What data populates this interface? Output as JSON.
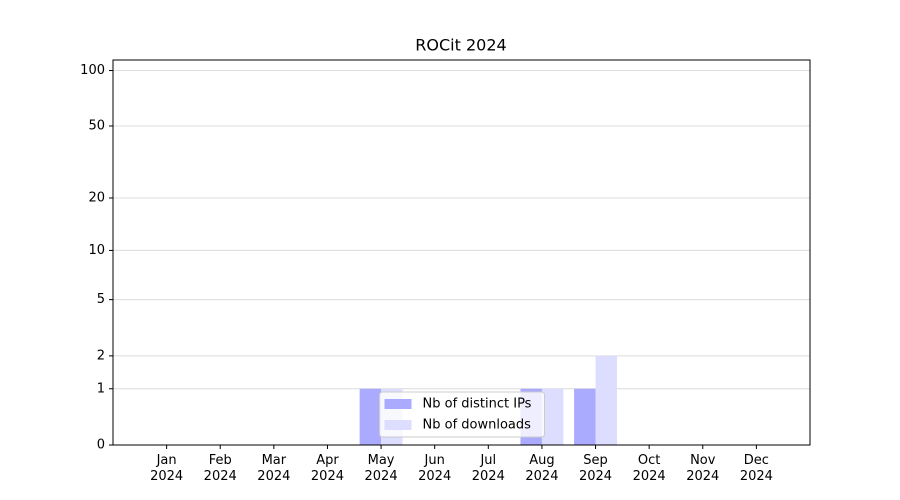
{
  "chart_data": {
    "type": "bar",
    "title": "ROCit 2024",
    "categories": [
      "Jan\n2024",
      "Feb\n2024",
      "Mar\n2024",
      "Apr\n2024",
      "May\n2024",
      "Jun\n2024",
      "Jul\n2024",
      "Aug\n2024",
      "Sep\n2024",
      "Oct\n2024",
      "Nov\n2024",
      "Dec\n2024"
    ],
    "series": [
      {
        "name": "Nb of distinct IPs",
        "color": "#aaaaff",
        "values": [
          0,
          0,
          0,
          0,
          1,
          0,
          0,
          1,
          1,
          0,
          0,
          0
        ]
      },
      {
        "name": "Nb of downloads",
        "color": "#ddddff",
        "values": [
          0,
          0,
          0,
          0,
          1,
          0,
          0,
          1,
          2,
          0,
          0,
          0
        ]
      }
    ],
    "yscale": "symlog",
    "ylim": [
      0,
      114
    ],
    "yticks": [
      0,
      1,
      2,
      5,
      10,
      20,
      50,
      100
    ],
    "grid": true,
    "legend": "lower center"
  }
}
